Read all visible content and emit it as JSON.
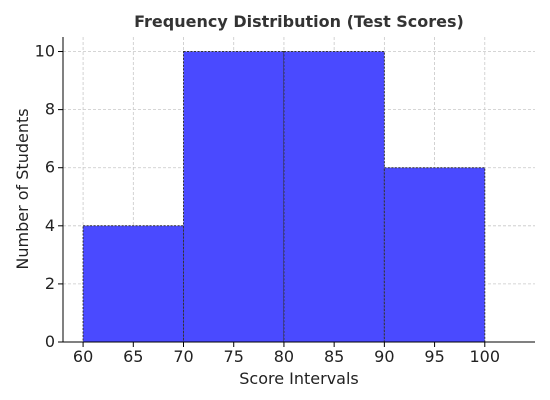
{
  "chart_data": {
    "type": "bar",
    "title": "Frequency Distribution (Test Scores)",
    "xlabel": "Score Intervals",
    "ylabel": "Number of Students",
    "bins": [
      {
        "start": 60,
        "end": 70,
        "count": 4
      },
      {
        "start": 70,
        "end": 80,
        "count": 10
      },
      {
        "start": 80,
        "end": 90,
        "count": 10
      },
      {
        "start": 90,
        "end": 100,
        "count": 6
      }
    ],
    "xlim": [
      58,
      105
    ],
    "ylim": [
      0,
      10.5
    ],
    "xticks": [
      60,
      65,
      70,
      75,
      80,
      85,
      90,
      95,
      100
    ],
    "yticks": [
      0,
      2,
      4,
      6,
      8,
      10
    ],
    "grid": true,
    "bar_color": "#4a4aff",
    "edge_color": "#333333",
    "grid_color": "#c8c8c8"
  }
}
